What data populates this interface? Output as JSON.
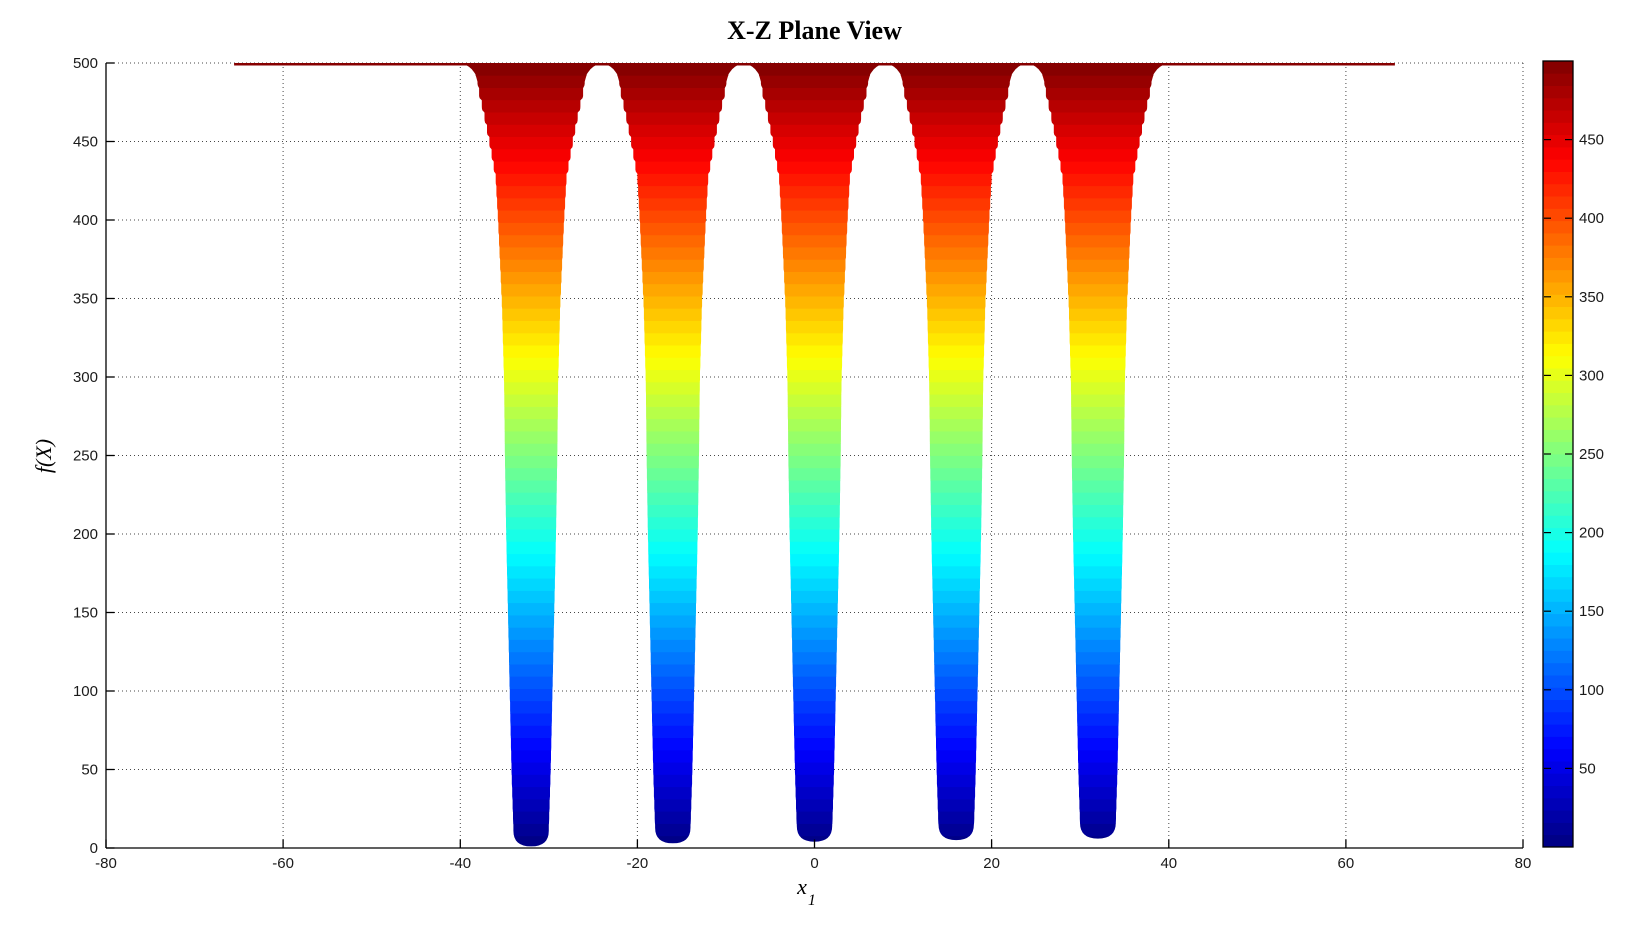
{
  "style": {
    "background": "#ffffff",
    "axis_color": "#000000",
    "grid_color": "#474747",
    "tick_label_color": "#1a1a1a",
    "plateau_color_hint": "#870000",
    "well_bottom_color_hint": "#000089"
  },
  "chart_data": {
    "type": "area",
    "title": "X-Z Plane View",
    "xlabel_base": "x",
    "xlabel_sub": "1",
    "ylabel": "f(X)",
    "xlim": [
      -80,
      80
    ],
    "ylim": [
      0,
      500
    ],
    "xticks": [
      -80,
      -60,
      -40,
      -20,
      0,
      20,
      40,
      60,
      80
    ],
    "yticks": [
      0,
      50,
      100,
      150,
      200,
      250,
      300,
      350,
      400,
      450,
      500
    ],
    "grid": "dotted",
    "legend": "none",
    "colormap": "jet",
    "color_levels": 64,
    "surface": {
      "description": "Shekel-foxholes-type surface seen edge-on along z: plateau at f=500 over x in [-65.536,65.536] with five funnel-shaped wells dropping to near 0",
      "plateau_level": 500,
      "plateau_x_extent": [
        -65.536,
        65.536
      ],
      "well_centers_x": [
        -32,
        -16,
        0,
        16,
        32
      ],
      "well_bottom_values": [
        1,
        3,
        4,
        5,
        6
      ],
      "well_half_width_profile": {
        "f_levels": [
          0,
          50,
          100,
          150,
          200,
          250,
          300,
          350,
          400,
          430,
          450,
          470,
          485,
          493,
          496,
          498,
          500
        ],
        "half_widths": [
          1.9,
          2.2,
          2.4,
          2.6,
          2.8,
          2.95,
          3.05,
          3.3,
          3.7,
          4.0,
          4.6,
          5.3,
          5.9,
          6.3,
          6.7,
          7.1,
          7.9
        ]
      }
    },
    "colorbar": {
      "ticks": [
        50,
        100,
        150,
        200,
        250,
        300,
        350,
        400,
        450
      ],
      "range": [
        0,
        500
      ],
      "position": "right"
    }
  }
}
